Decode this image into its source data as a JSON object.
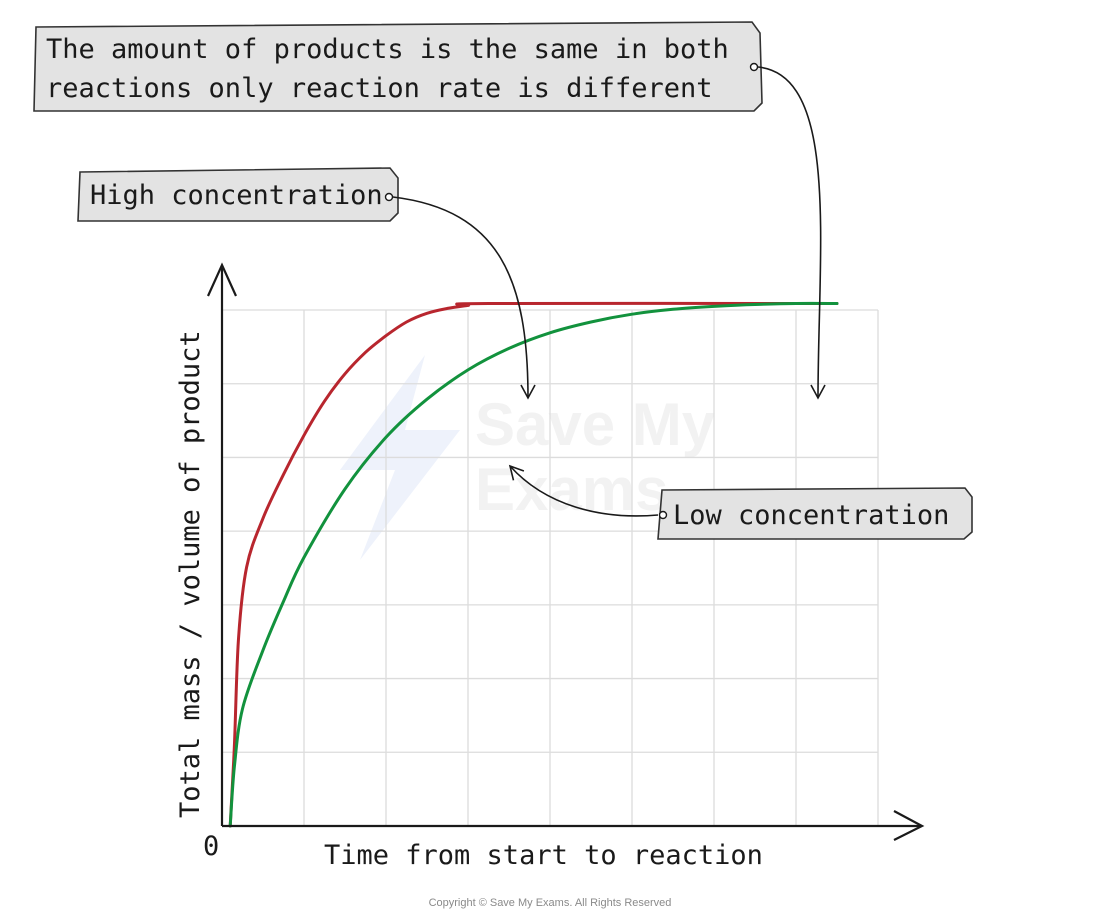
{
  "chart_data": {
    "type": "line",
    "title": "",
    "xlabel": "Time from start to reaction",
    "ylabel": "Total mass / volume of product",
    "origin_label": "0",
    "grid": true,
    "xlim": [
      0,
      8
    ],
    "ylim": [
      0,
      6
    ],
    "series": [
      {
        "name": "High concentration",
        "color": "#b8262e",
        "x": [
          0.1,
          0.15,
          0.2,
          0.3,
          0.5,
          0.75,
          1.0,
          1.25,
          1.5,
          1.75,
          2.0,
          2.25,
          2.5,
          2.75,
          3.0,
          3.25,
          7.5
        ],
        "y": [
          0.0,
          0.8,
          1.9,
          2.65,
          3.15,
          3.6,
          4.0,
          4.35,
          4.63,
          4.85,
          5.02,
          5.16,
          5.25,
          5.3,
          5.33,
          5.35,
          5.35
        ]
      },
      {
        "name": "Low concentration",
        "color": "#12923d",
        "x": [
          0.1,
          0.15,
          0.25,
          0.5,
          0.75,
          1.0,
          1.5,
          2.0,
          2.5,
          3.0,
          3.5,
          4.0,
          4.5,
          5.0,
          5.5,
          6.0,
          6.5,
          7.0,
          7.5
        ],
        "y": [
          0.0,
          0.6,
          1.2,
          1.8,
          2.3,
          2.75,
          3.45,
          3.98,
          4.37,
          4.67,
          4.89,
          5.05,
          5.16,
          5.24,
          5.29,
          5.32,
          5.34,
          5.35,
          5.35
        ]
      }
    ],
    "annotations": [
      "The amount of products is the same in both reactions only reaction rate is different",
      "High concentration",
      "Low concentration"
    ]
  },
  "callouts": {
    "same_products_line1": "The amount of products is the same in both",
    "same_products_line2": "reactions only reaction rate is different",
    "high": "High concentration",
    "low": "Low concentration"
  },
  "watermark": {
    "line1": "Save My",
    "line2": "Exams"
  },
  "footer": {
    "copyright": "Copyright © Save My Exams. All Rights Reserved"
  }
}
